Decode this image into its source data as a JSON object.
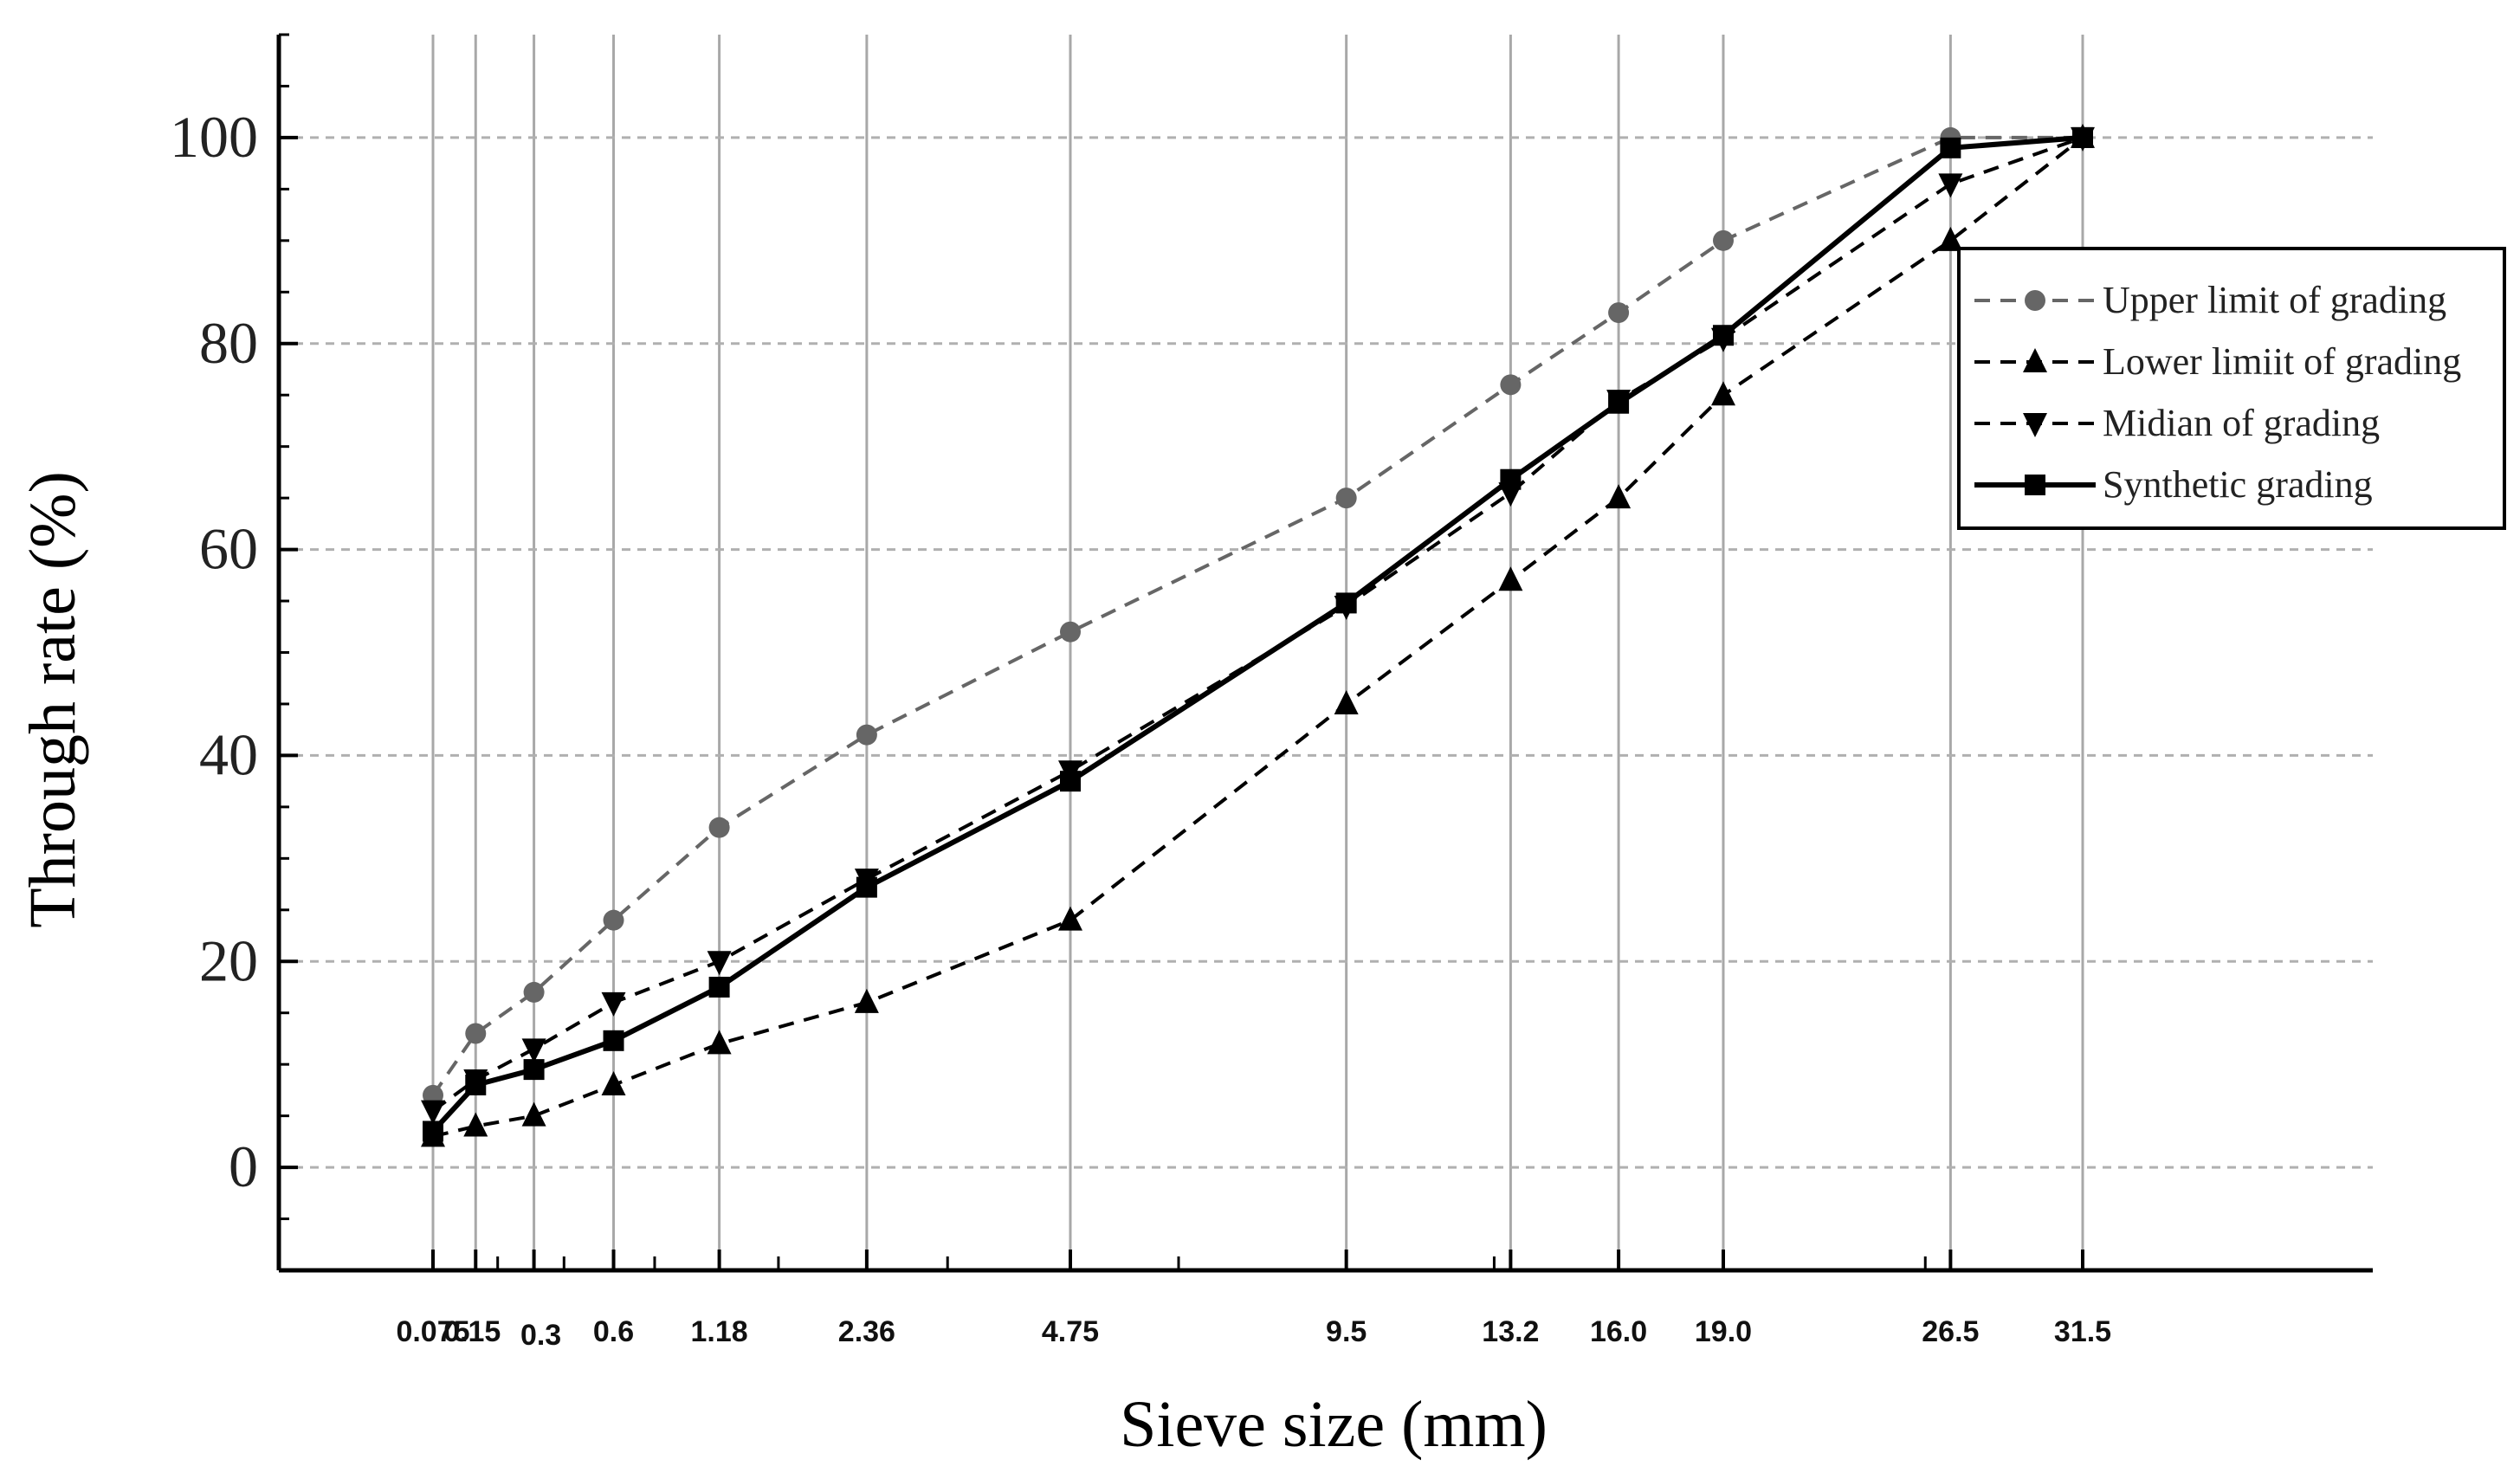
{
  "chart_data": {
    "type": "line",
    "xlabel": "Sieve size (mm)",
    "ylabel": "Through rate (%)",
    "x_scale": "power-0.45",
    "ylim": [
      -10,
      110
    ],
    "yticks": [
      0,
      20,
      40,
      60,
      80,
      100
    ],
    "categories": [
      "0.075",
      "0.15",
      "0.3",
      "0.6",
      "1.18",
      "2.36",
      "4.75",
      "9.5",
      "13.2",
      "16.0",
      "19.0",
      "26.5",
      "31.5"
    ],
    "x": [
      0.075,
      0.15,
      0.3,
      0.6,
      1.18,
      2.36,
      4.75,
      9.5,
      13.2,
      16.0,
      19.0,
      26.5,
      31.5
    ],
    "minor_ticks": [
      0.2,
      0.4,
      0.8,
      1.6,
      3.2,
      6.4,
      12.8,
      25.6
    ],
    "grid": {
      "horizontal": "dashed",
      "vertical": "solid"
    },
    "legend_position": "top-right",
    "series": [
      {
        "name": "Upper limit of grading",
        "style": "dashed",
        "marker": "circle",
        "color": "#666666",
        "values": [
          7,
          13,
          17,
          24,
          33,
          42,
          52,
          65,
          76,
          83,
          90,
          100,
          100
        ]
      },
      {
        "name": "Lower limiit of grading",
        "style": "dashed",
        "marker": "triangle-up",
        "color": "#000000",
        "values": [
          3,
          4,
          5,
          8,
          12,
          16,
          24,
          45,
          57,
          65,
          75,
          90,
          100
        ]
      },
      {
        "name": "Midian of grading",
        "style": "dashed",
        "marker": "triangle-down",
        "color": "#000000",
        "values": [
          5.5,
          8.5,
          11.5,
          16,
          20,
          28,
          38.5,
          54.5,
          65.5,
          74.5,
          80.5,
          95.5,
          100
        ]
      },
      {
        "name": "Synthetic grading",
        "style": "solid",
        "marker": "square",
        "color": "#000000",
        "values": [
          3.5,
          8,
          9.5,
          12.3,
          17.5,
          27.2,
          37.5,
          54.8,
          66.8,
          74.2,
          80.8,
          99,
          100
        ]
      }
    ]
  }
}
